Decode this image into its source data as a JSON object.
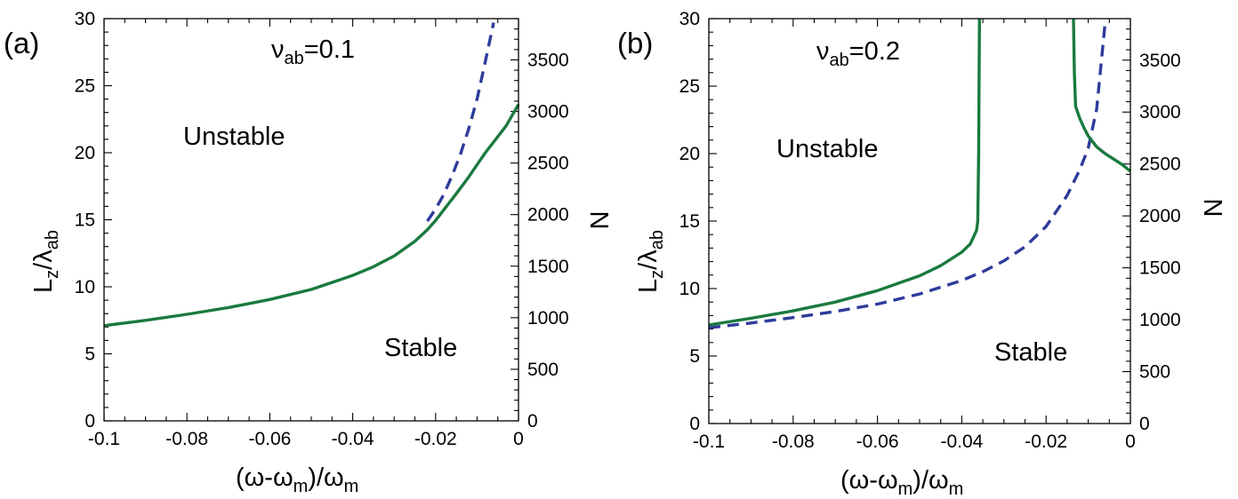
{
  "chart_data": [
    {
      "type": "line",
      "panel_label": "(a)",
      "annotation": {
        "symbol": "ν",
        "sub": "ab",
        "rest": "=0.1"
      },
      "region_labels": {
        "upper": "Unstable",
        "lower": "Stable"
      },
      "xlabel": {
        "p1": "(ω-ω",
        "sub1": "m",
        "p2": ")/ω",
        "sub2": "m"
      },
      "ylabel": {
        "p1": "L",
        "sub1": "z",
        "p2": "/λ",
        "sub2": "ab"
      },
      "y2label": "N",
      "xlim": [
        -0.1,
        0
      ],
      "ylim": [
        0,
        30
      ],
      "y2lim": [
        0,
        3900
      ],
      "xticks": [
        -0.1,
        -0.08,
        -0.06,
        -0.04,
        -0.02,
        0
      ],
      "xtick_labels": [
        "-0.1",
        "-0.08",
        "-0.06",
        "-0.04",
        "-0.02",
        "0"
      ],
      "yticks": [
        0,
        5,
        10,
        15,
        20,
        25,
        30
      ],
      "ytick_labels": [
        "0",
        "5",
        "10",
        "15",
        "20",
        "25",
        "30"
      ],
      "y2ticks": [
        0,
        500,
        1000,
        1500,
        2000,
        2500,
        3000,
        3500
      ],
      "y2tick_labels": [
        "0",
        "500",
        "1000",
        "1500",
        "2000",
        "2500",
        "3000",
        "3500"
      ],
      "series": [
        {
          "name": "solid",
          "style": "solid",
          "color": "#1a7a3e",
          "x": [
            -0.1,
            -0.09,
            -0.08,
            -0.07,
            -0.06,
            -0.05,
            -0.04,
            -0.035,
            -0.03,
            -0.025,
            -0.022,
            -0.02,
            -0.018,
            -0.015,
            -0.012,
            -0.01,
            -0.008,
            -0.005,
            -0.003,
            0
          ],
          "y": [
            7.1,
            7.5,
            7.95,
            8.45,
            9.05,
            9.8,
            10.85,
            11.5,
            12.3,
            13.4,
            14.25,
            14.95,
            15.75,
            16.95,
            18.2,
            19.1,
            20.0,
            21.2,
            22.0,
            23.6
          ]
        },
        {
          "name": "dashed",
          "style": "dashed",
          "color": "#2e3c9a",
          "x": [
            -0.022,
            -0.02,
            -0.018,
            -0.016,
            -0.014,
            -0.012,
            -0.01,
            -0.008,
            -0.006
          ],
          "y": [
            14.9,
            15.8,
            16.9,
            18.3,
            19.9,
            21.8,
            24.0,
            26.8,
            29.7
          ]
        }
      ]
    },
    {
      "type": "line",
      "panel_label": "(b)",
      "annotation": {
        "symbol": "ν",
        "sub": "ab",
        "rest": "=0.2"
      },
      "region_labels": {
        "upper": "Unstable",
        "lower": "Stable"
      },
      "xlabel": {
        "p1": "(ω-ω",
        "sub1": "m",
        "p2": ")/ω",
        "sub2": "m"
      },
      "ylabel": {
        "p1": "L",
        "sub1": "z",
        "p2": "/λ",
        "sub2": "ab"
      },
      "y2label": "N",
      "xlim": [
        -0.1,
        0
      ],
      "ylim": [
        0,
        30
      ],
      "y2lim": [
        0,
        3900
      ],
      "xticks": [
        -0.1,
        -0.08,
        -0.06,
        -0.04,
        -0.02,
        0
      ],
      "xtick_labels": [
        "-0.1",
        "-0.08",
        "-0.06",
        "-0.04",
        "-0.02",
        "0"
      ],
      "yticks": [
        0,
        5,
        10,
        15,
        20,
        25,
        30
      ],
      "ytick_labels": [
        "0",
        "5",
        "10",
        "15",
        "20",
        "25",
        "30"
      ],
      "y2ticks": [
        0,
        500,
        1000,
        1500,
        2000,
        2500,
        3000,
        3500
      ],
      "y2tick_labels": [
        "0",
        "500",
        "1000",
        "1500",
        "2000",
        "2500",
        "3000",
        "3500"
      ],
      "series": [
        {
          "name": "solid-left",
          "style": "solid",
          "color": "#1a7a3e",
          "x": [
            -0.1,
            -0.09,
            -0.08,
            -0.07,
            -0.06,
            -0.05,
            -0.045,
            -0.04,
            -0.038,
            -0.0365,
            -0.0362,
            -0.036,
            -0.0358
          ],
          "y": [
            7.3,
            7.8,
            8.35,
            9.0,
            9.85,
            10.95,
            11.7,
            12.7,
            13.3,
            14.3,
            15.0,
            20.0,
            30.0
          ]
        },
        {
          "name": "solid-right",
          "style": "solid",
          "color": "#1a7a3e",
          "x": [
            -0.0135,
            -0.0133,
            -0.013,
            -0.012,
            -0.011,
            -0.01,
            -0.008,
            -0.006,
            -0.004,
            -0.002,
            0
          ],
          "y": [
            30.0,
            26.0,
            23.5,
            22.6,
            21.9,
            21.3,
            20.5,
            20.0,
            19.6,
            19.2,
            18.7
          ]
        },
        {
          "name": "dashed",
          "style": "dashed",
          "color": "#2e3c9a",
          "x": [
            -0.1,
            -0.09,
            -0.08,
            -0.07,
            -0.06,
            -0.05,
            -0.04,
            -0.035,
            -0.03,
            -0.025,
            -0.02,
            -0.015,
            -0.012,
            -0.01,
            -0.008,
            -0.006
          ],
          "y": [
            7.1,
            7.45,
            7.85,
            8.3,
            8.85,
            9.6,
            10.6,
            11.25,
            12.05,
            13.1,
            14.6,
            16.9,
            18.8,
            20.4,
            23.3,
            29.7
          ]
        }
      ]
    }
  ]
}
